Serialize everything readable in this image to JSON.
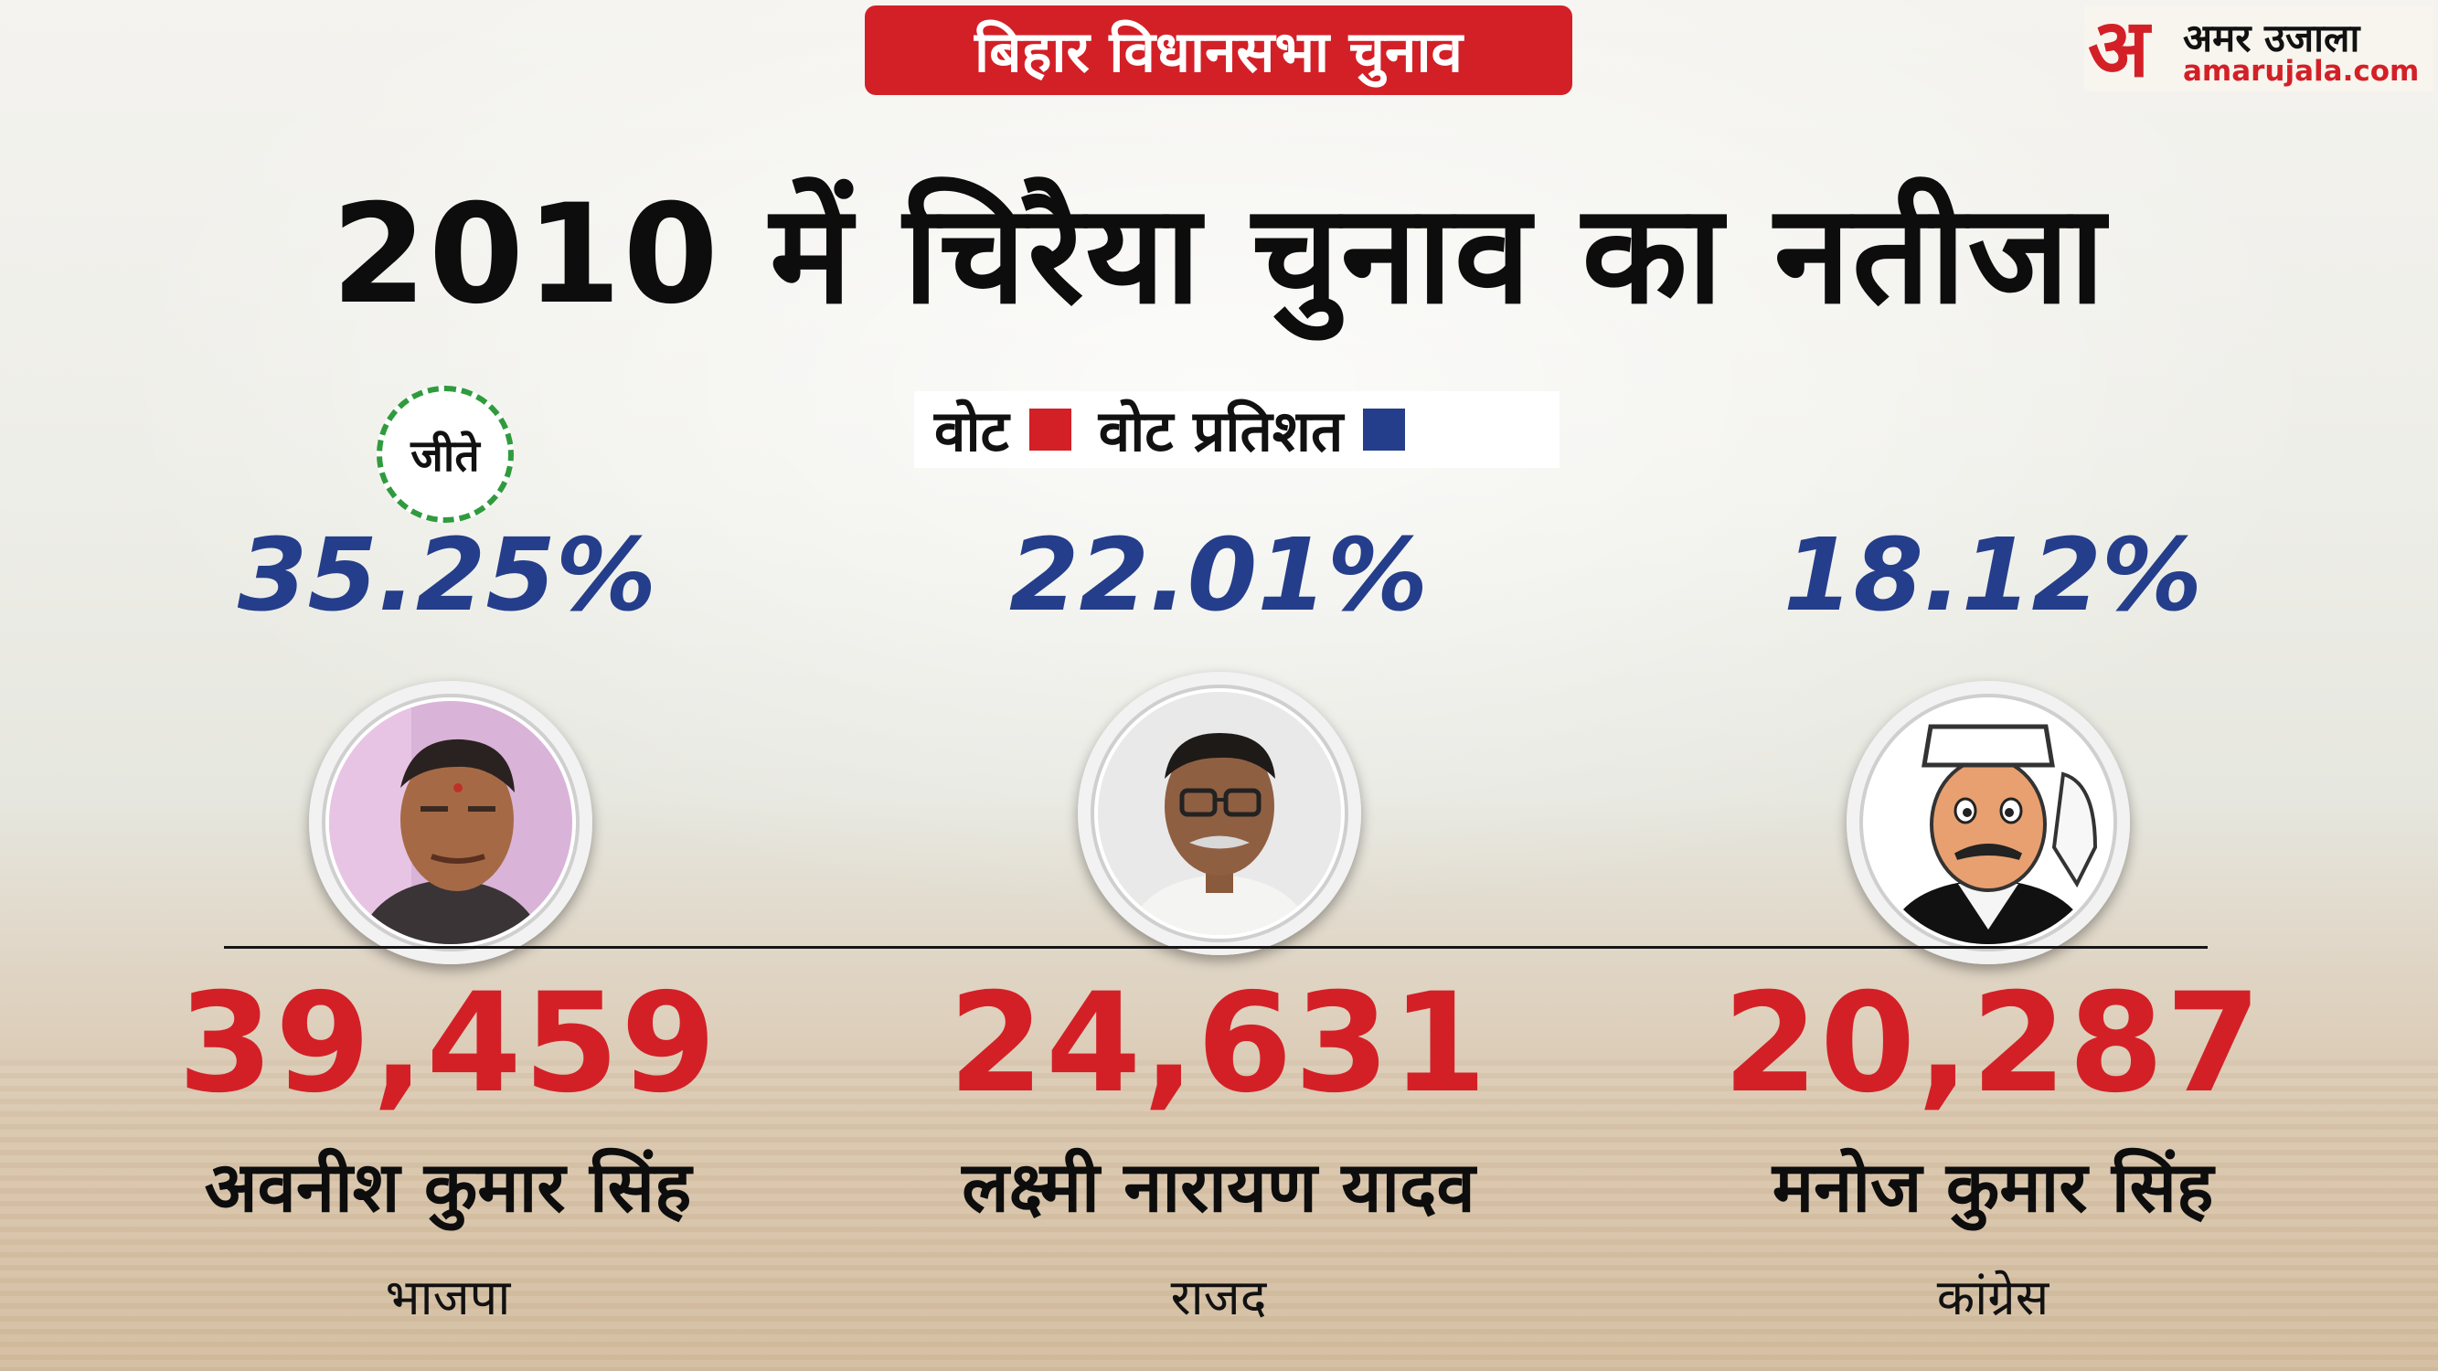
{
  "header": {
    "badge": "बिहार विधानसभा चुनाव",
    "title": "2010 में चिरैया चुनाव का नतीजा"
  },
  "logo": {
    "mark": "अ",
    "hindi": "अमर उजाला",
    "url": "amarujala.com"
  },
  "legend": {
    "votes_label": "वोट",
    "votes_color": "#d32027",
    "percent_label": "वोट प्रतिशत",
    "percent_color": "#253e8b"
  },
  "winner_label": "जीते",
  "candidates": [
    {
      "name": "अवनीश कुमार सिंह",
      "party": "भाजपा",
      "votes": "39,459",
      "percent": "35.25%",
      "winner": true
    },
    {
      "name": "लक्ष्मी नारायण यादव",
      "party": "राजद",
      "votes": "24,631",
      "percent": "22.01%",
      "winner": false
    },
    {
      "name": "मनोज कुमार सिंह",
      "party": "कांग्रेस",
      "votes": "20,287",
      "percent": "18.12%",
      "winner": false
    }
  ]
}
